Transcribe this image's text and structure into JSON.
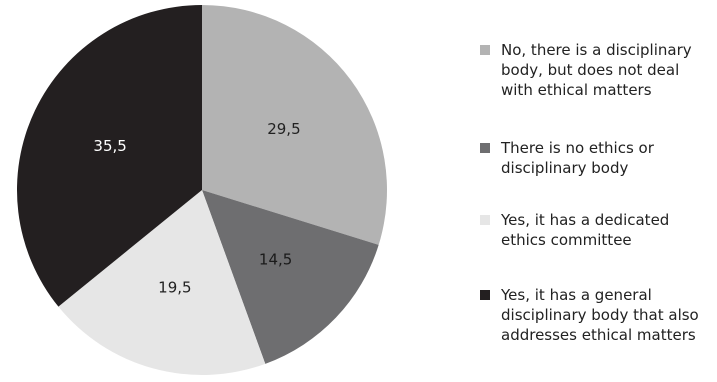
{
  "chart_data": {
    "type": "pie",
    "title": "",
    "slices": [
      {
        "label": "No, there is a disciplinary body, but does not deal with ethical matters",
        "value": 29.5,
        "value_label": "29,5",
        "color": "#b3b3b3",
        "text_color": "#222222"
      },
      {
        "label": "There is no ethics or disciplinary body",
        "value": 14.5,
        "value_label": "14,5",
        "color": "#6e6e70",
        "text_color": "#1a1a1a"
      },
      {
        "label": "Yes, it has a dedicated ethics committee",
        "value": 19.5,
        "value_label": "19,5",
        "color": "#e6e6e6",
        "text_color": "#222222"
      },
      {
        "label": "Yes, it has a general disciplinary body that also addresses ethical matters",
        "value": 35.5,
        "value_label": "35,5",
        "color": "#231f20",
        "text_color": "#ffffff"
      }
    ],
    "legend": {
      "position": "right",
      "entries": [
        "No, there is a disciplinary\nbody, but does not deal\nwith ethical matters",
        "There is no ethics or\ndisciplinary body",
        "Yes, it has a dedicated\nethics committee",
        "Yes, it has a general\ndisciplinary body that also\naddresses ethical matters"
      ]
    }
  }
}
